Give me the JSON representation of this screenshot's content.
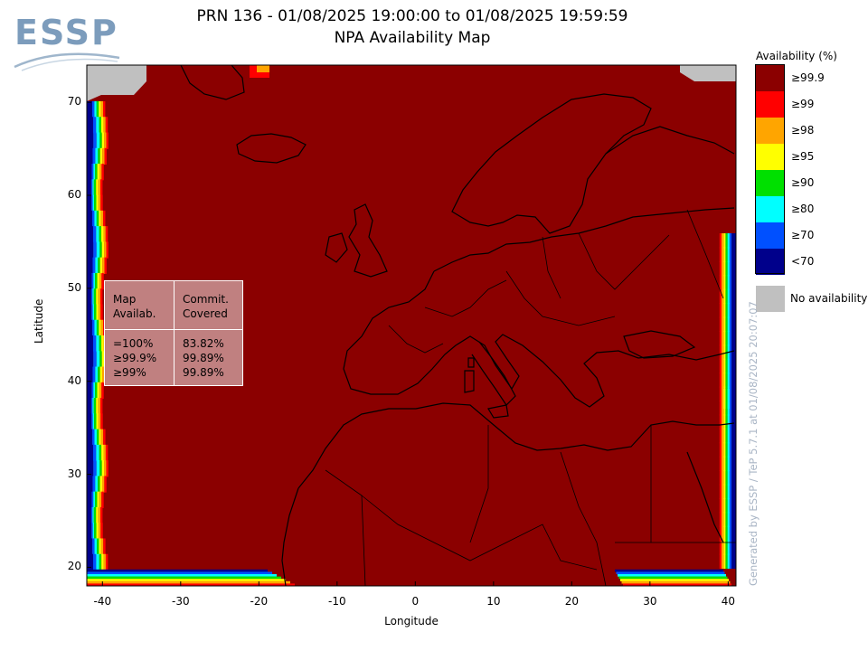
{
  "header": {
    "logo_text": "ESSP",
    "title": "PRN 136 - 01/08/2025 19:00:00 to 01/08/2025 19:59:59",
    "subtitle": "NPA Availability Map"
  },
  "legend": {
    "title": "Availability (%)",
    "items": [
      {
        "label": "≥99.9",
        "color": "#8b0000"
      },
      {
        "label": "≥99",
        "color": "#ff0000"
      },
      {
        "label": "≥98",
        "color": "#ffa500"
      },
      {
        "label": "≥95",
        "color": "#ffff00"
      },
      {
        "label": "≥90",
        "color": "#00e000"
      },
      {
        "label": "≥80",
        "color": "#00ffff"
      },
      {
        "label": "≥70",
        "color": "#0050ff"
      },
      {
        "label": "<70",
        "color": "#00008b"
      }
    ],
    "no_availability": {
      "label": "No availability",
      "color": "#c0c0c0"
    }
  },
  "stats_table": {
    "headers": [
      "Map\nAvailab.",
      "Commit.\nCovered"
    ],
    "rows": [
      [
        "=100%",
        "83.82%"
      ],
      [
        "≥99.9%",
        "99.89%"
      ],
      [
        "≥99%",
        "99.89%"
      ]
    ]
  },
  "credit": "Generated by ESSP / TeP 5.7.1 at 01/08/2025 20:07:07",
  "chart_data": {
    "type": "heatmap",
    "title": "PRN 136 - 01/08/2025 19:00:00 to 01/08/2025 19:59:59",
    "subtitle": "NPA Availability Map",
    "xlabel": "Longitude",
    "ylabel": "Latitude",
    "xlim": [
      -42,
      41
    ],
    "ylim": [
      18,
      74
    ],
    "xticks": [
      -40,
      -30,
      -20,
      -10,
      0,
      10,
      20,
      30,
      40
    ],
    "yticks": [
      20,
      30,
      40,
      50,
      60,
      70
    ],
    "dominant_class": "≥99.9",
    "colorbar_classes": [
      "≥99.9",
      "≥99",
      "≥98",
      "≥95",
      "≥90",
      "≥80",
      "≥70",
      "<70"
    ]
  }
}
